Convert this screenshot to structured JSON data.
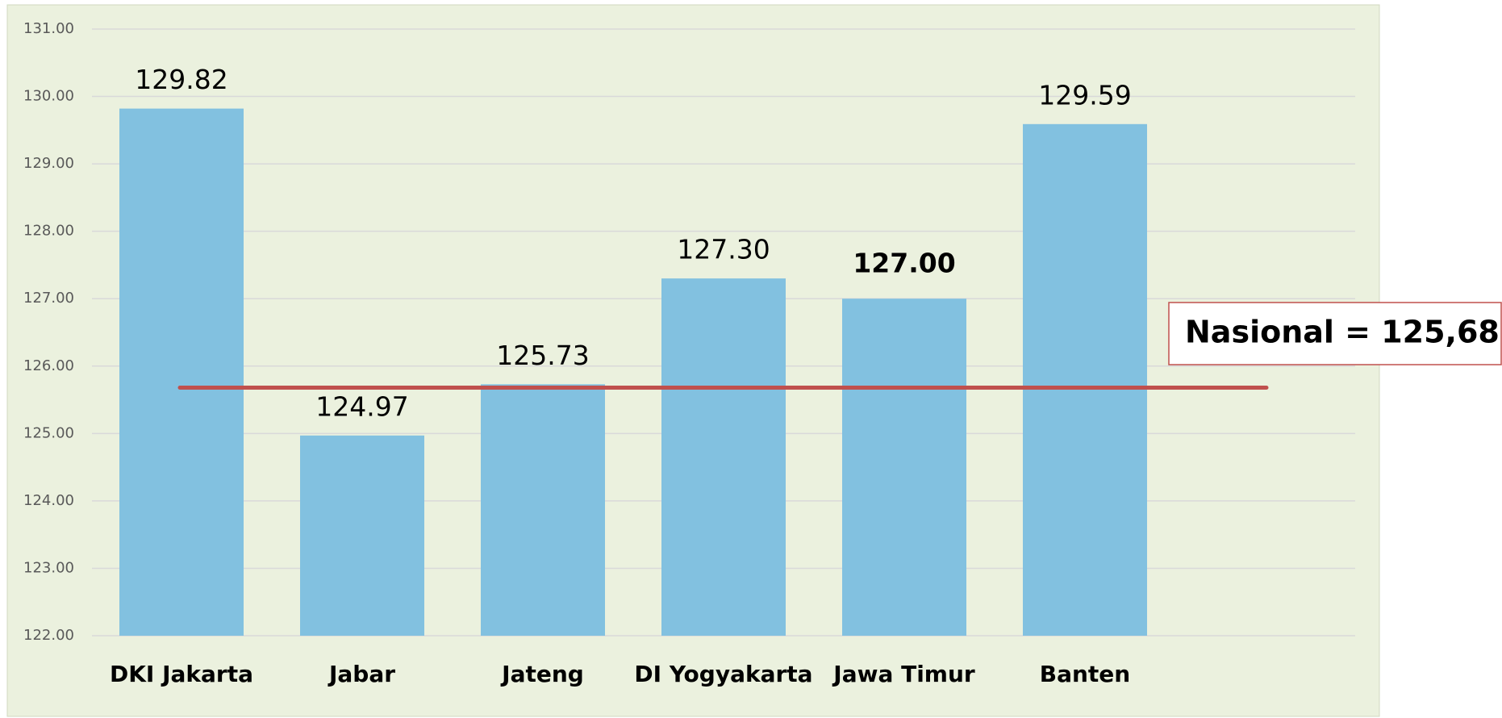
{
  "chart_data": {
    "type": "bar",
    "categories": [
      "DKI Jakarta",
      "Jabar",
      "Jateng",
      "DI Yogyakarta",
      "Jawa Timur",
      "Banten"
    ],
    "values": [
      129.82,
      124.97,
      125.73,
      127.3,
      127.0,
      129.59
    ],
    "value_labels": [
      "129.82",
      "124.97",
      "125.73",
      "127.30",
      "127.00",
      "129.59"
    ],
    "color": "#82c1e0",
    "bold_value_labels": [
      4
    ],
    "ylim": [
      122,
      131
    ],
    "yticks": [
      {
        "value": 122,
        "label": "122.00"
      },
      {
        "value": 123,
        "label": "123.00"
      },
      {
        "value": 124,
        "label": "124.00"
      },
      {
        "value": 125,
        "label": "125.00"
      },
      {
        "value": 126,
        "label": "126.00"
      },
      {
        "value": 127,
        "label": "127.00"
      },
      {
        "value": 128,
        "label": "128.00"
      },
      {
        "value": 129,
        "label": "129.00"
      },
      {
        "value": 130,
        "label": "130.00"
      },
      {
        "value": 131,
        "label": "131.00"
      }
    ],
    "grid": true,
    "reference_line": {
      "value": 125.68,
      "label": "Nasional = 125,68",
      "color": "#c0504d"
    }
  }
}
